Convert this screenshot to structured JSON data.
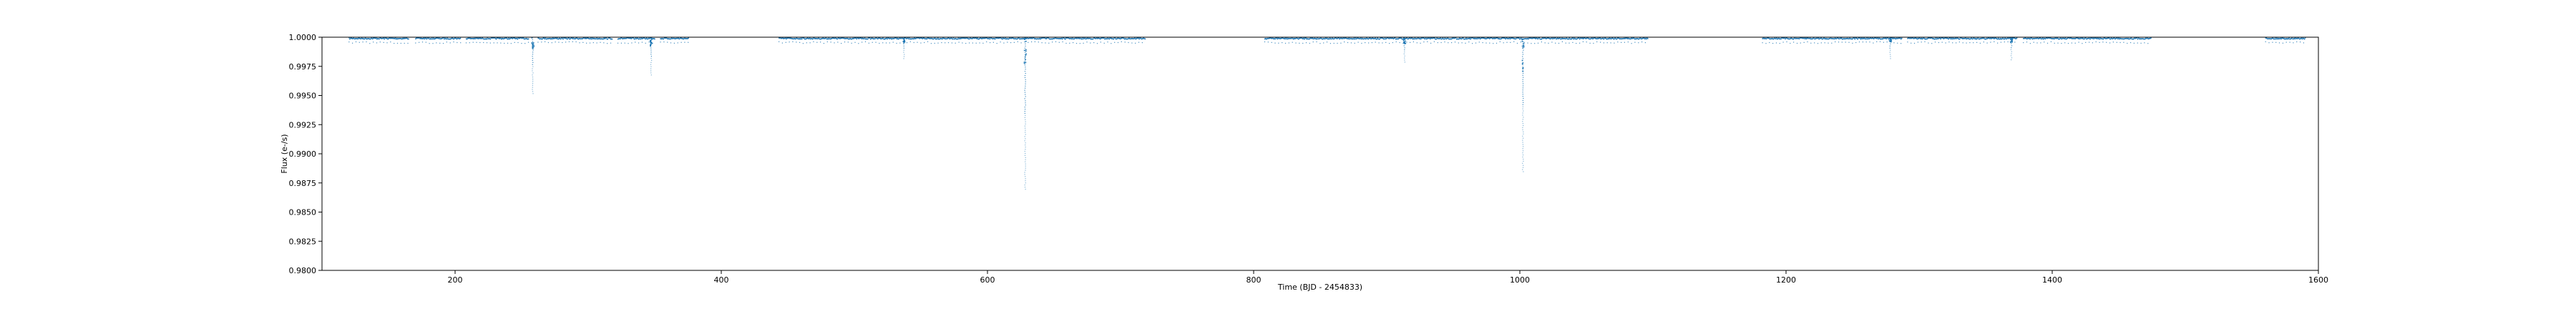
{
  "chart_data": {
    "type": "scatter",
    "title": "",
    "xlabel": "Time (BJD - 2454833)",
    "ylabel": "Flux (e-/s)",
    "xlim": [
      100,
      1600
    ],
    "ylim": [
      0.98,
      1.0
    ],
    "xticks": [
      200,
      400,
      600,
      800,
      1000,
      1200,
      1400,
      1600
    ],
    "yticks": [
      "1.0000",
      "0.9975",
      "0.9950",
      "0.9925",
      "0.9900",
      "0.9875",
      "0.9850",
      "0.9825",
      "0.9800"
    ],
    "grid": false,
    "legend": "none",
    "marker_color": "#1f77b4",
    "baseline_flux": 1.0,
    "observation_segments": [
      [
        120,
        165
      ],
      [
        170,
        204
      ],
      [
        208,
        255
      ],
      [
        262,
        318
      ],
      [
        322,
        350
      ],
      [
        354,
        375
      ],
      [
        443,
        718
      ],
      [
        808,
        1096
      ],
      [
        1182,
        1287
      ],
      [
        1291,
        1373
      ],
      [
        1378,
        1474
      ],
      [
        1560,
        1590
      ]
    ],
    "gaps_in_coverage": [
      [
        376,
        442
      ],
      [
        719,
        807
      ],
      [
        1097,
        1181
      ],
      [
        1475,
        1559
      ]
    ],
    "dips": [
      {
        "x": 258,
        "y": 0.9952
      },
      {
        "x": 347,
        "y": 0.9968
      },
      {
        "x": 537,
        "y": 0.9982
      },
      {
        "x": 628,
        "y": 0.987
      },
      {
        "x": 913,
        "y": 0.9979
      },
      {
        "x": 1002,
        "y": 0.9885
      },
      {
        "x": 1278,
        "y": 0.9982
      },
      {
        "x": 1369,
        "y": 0.9981
      }
    ],
    "period_days": 90.8
  }
}
